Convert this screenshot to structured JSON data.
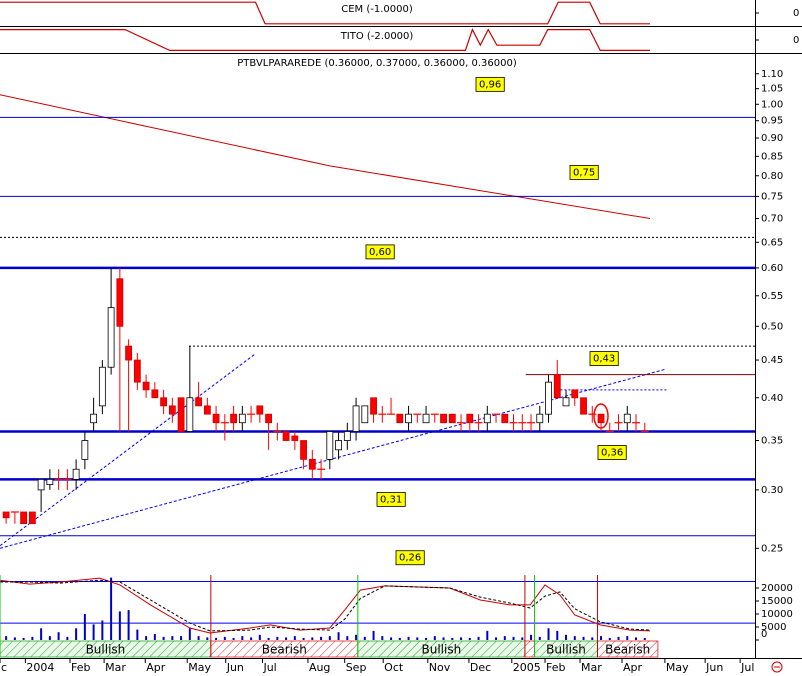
{
  "chart_data": [
    {
      "type": "step",
      "title": "CEM (-1.0000)",
      "xlim": [
        -0.7,
        85.6
      ],
      "ylim": [
        -1.2,
        1.2
      ],
      "yticks": [
        0
      ],
      "series": [
        {
          "color": "#cc0000",
          "x": [
            -0.7,
            28.5,
            29.6,
            61.9,
            63.1,
            66.7,
            67.9,
            73.6
          ],
          "values": [
            1,
            1,
            -1,
            -1,
            1,
            1,
            -1,
            -1
          ]
        }
      ]
    },
    {
      "type": "step",
      "title": "TITO (-2.0000)",
      "xlim": [
        -0.7,
        85.6
      ],
      "ylim": [
        -2.5,
        2.5
      ],
      "yticks": [
        0
      ],
      "series": [
        {
          "color": "#cc0000",
          "x": [
            -0.7,
            13.6,
            18.7,
            52.5,
            53.3,
            54.2,
            55.1,
            56.1,
            61.0,
            61.9,
            66.7,
            67.9,
            73.6
          ],
          "values": [
            2,
            2,
            -2,
            -2,
            2,
            -1,
            2,
            -1,
            -1,
            2,
            2,
            -2,
            -2
          ]
        }
      ]
    },
    {
      "type": "candlestick",
      "title": "PTBVLPARAREDE (0.36000, 0.37000, 0.36000, 0.36000)",
      "xlim": [
        -0.7,
        85.6
      ],
      "ylim": [
        0.23,
        1.17
      ],
      "log": true,
      "yticks": [
        0.25,
        {
          "value": 0.3,
          "label": "0.30"
        },
        0.35,
        {
          "value": 0.4,
          "label": "0.40"
        },
        0.45,
        {
          "value": 0.5,
          "label": "0.50"
        },
        0.55,
        {
          "value": 0.6,
          "label": "0.60"
        },
        0.65,
        {
          "value": 0.7,
          "label": "0.70"
        },
        0.75,
        {
          "value": 0.8,
          "label": "0.80"
        },
        0.85,
        {
          "value": 0.9,
          "label": "0.90"
        },
        0.95,
        {
          "value": 1.0,
          "label": "1.00"
        },
        1.05,
        {
          "value": 1.1,
          "label": "1.10"
        }
      ],
      "up_color": "#ffffff",
      "down_color": "#ff0000",
      "open": [
        0.28,
        0.28,
        0.28,
        0.28,
        0.3,
        0.305,
        0.31,
        0.31,
        0.31,
        0.33,
        0.37,
        0.39,
        0.44,
        0.58,
        0.47,
        0.45,
        0.42,
        0.41,
        0.4,
        0.39,
        0.4,
        0.36,
        0.4,
        0.39,
        0.38,
        0.37,
        0.38,
        0.37,
        0.38,
        0.39,
        0.38,
        0.36,
        0.36,
        0.355,
        0.35,
        0.33,
        0.32,
        0.33,
        0.34,
        0.35,
        0.36,
        0.37,
        0.4,
        0.38,
        0.38,
        0.38,
        0.37,
        0.38,
        0.37,
        0.38,
        0.38,
        0.38,
        0.37,
        0.38,
        0.37,
        0.37,
        0.38,
        0.38,
        0.37,
        0.37,
        0.37,
        0.37,
        0.38,
        0.43,
        0.39,
        0.41,
        0.4,
        0.38,
        0.38,
        0.36,
        0.37,
        0.37,
        0.37,
        0.36
      ],
      "high": [
        0.28,
        0.28,
        0.28,
        0.28,
        0.31,
        0.32,
        0.32,
        0.32,
        0.33,
        0.36,
        0.4,
        0.45,
        0.6,
        0.6,
        0.48,
        0.46,
        0.43,
        0.42,
        0.41,
        0.4,
        0.4,
        0.47,
        0.42,
        0.4,
        0.39,
        0.38,
        0.39,
        0.39,
        0.39,
        0.39,
        0.38,
        0.37,
        0.36,
        0.36,
        0.35,
        0.34,
        0.33,
        0.36,
        0.36,
        0.37,
        0.4,
        0.39,
        0.4,
        0.39,
        0.4,
        0.38,
        0.39,
        0.38,
        0.39,
        0.38,
        0.38,
        0.38,
        0.38,
        0.38,
        0.38,
        0.39,
        0.38,
        0.38,
        0.38,
        0.38,
        0.38,
        0.39,
        0.43,
        0.45,
        0.41,
        0.41,
        0.4,
        0.39,
        0.38,
        0.37,
        0.38,
        0.39,
        0.38,
        0.37
      ],
      "low": [
        0.27,
        0.27,
        0.27,
        0.27,
        0.28,
        0.3,
        0.3,
        0.3,
        0.3,
        0.32,
        0.36,
        0.38,
        0.43,
        0.36,
        0.36,
        0.41,
        0.4,
        0.4,
        0.38,
        0.37,
        0.36,
        0.36,
        0.39,
        0.38,
        0.36,
        0.35,
        0.36,
        0.36,
        0.37,
        0.37,
        0.34,
        0.35,
        0.35,
        0.34,
        0.32,
        0.31,
        0.31,
        0.32,
        0.33,
        0.34,
        0.35,
        0.37,
        0.37,
        0.37,
        0.38,
        0.37,
        0.36,
        0.37,
        0.37,
        0.37,
        0.37,
        0.37,
        0.36,
        0.36,
        0.36,
        0.36,
        0.37,
        0.37,
        0.36,
        0.36,
        0.36,
        0.36,
        0.37,
        0.4,
        0.39,
        0.39,
        0.38,
        0.37,
        0.36,
        0.36,
        0.36,
        0.36,
        0.36,
        0.36
      ],
      "close": [
        0.275,
        0.28,
        0.27,
        0.27,
        0.31,
        0.31,
        0.31,
        0.31,
        0.32,
        0.35,
        0.38,
        0.44,
        0.53,
        0.5,
        0.45,
        0.42,
        0.41,
        0.4,
        0.39,
        0.38,
        0.36,
        0.4,
        0.39,
        0.38,
        0.37,
        0.37,
        0.37,
        0.38,
        0.38,
        0.38,
        0.37,
        0.36,
        0.35,
        0.35,
        0.33,
        0.32,
        0.32,
        0.36,
        0.35,
        0.36,
        0.39,
        0.39,
        0.38,
        0.38,
        0.38,
        0.37,
        0.38,
        0.38,
        0.38,
        0.38,
        0.37,
        0.37,
        0.37,
        0.37,
        0.37,
        0.38,
        0.38,
        0.37,
        0.37,
        0.37,
        0.37,
        0.38,
        0.42,
        0.4,
        0.4,
        0.4,
        0.38,
        0.38,
        0.37,
        0.36,
        0.37,
        0.38,
        0.37,
        0.36
      ],
      "levels": {
        "values": [
          0.96,
          0.75,
          0.6,
          0.43,
          0.36,
          0.31,
          0.26
        ],
        "value_labels": [
          "0,96",
          "0,75",
          "0,60",
          "0,43",
          "0,36",
          "0,31",
          "0,26"
        ],
        "styles": [
          "thin",
          "thin",
          "thick",
          "thin",
          "thick",
          "thick",
          "thin"
        ],
        "colors": [
          "#0000cc",
          "#0000cc",
          "#0000cc",
          "#800000",
          "#0000cc",
          "#0000cc",
          "#0000cc"
        ],
        "x_from": [
          -0.7,
          -0.7,
          -0.7,
          59.4,
          -0.7,
          -0.7,
          -0.7
        ]
      },
      "dotted_lines": {
        "values": [
          0.66,
          0.47,
          0.41
        ],
        "x_from": [
          -0.7,
          20.9,
          62.9
        ],
        "x_to": [
          85.6,
          85.6,
          75.6
        ],
        "colors": [
          "#000000",
          "#000000",
          "#0000ff"
        ]
      },
      "trend_lines": [
        {
          "color": "#0000ff",
          "x": [
            -0.7,
            28.5
          ],
          "values": [
            0.252,
            0.459
          ]
        },
        {
          "color": "#0000ff",
          "x": [
            -0.7,
            75.3
          ],
          "values": [
            0.25,
            0.437
          ]
        }
      ],
      "average": {
        "color": "#cc0000",
        "x": [
          -0.7,
          37,
          73.6
        ],
        "values": [
          1.03,
          0.825,
          0.7
        ]
      }
    },
    {
      "type": "bar",
      "xlim": [
        -0.7,
        85.6
      ],
      "ylim": [
        0,
        25000
      ],
      "yticks": [
        0,
        5000,
        10000,
        15000,
        20000
      ],
      "color": "#0000cc",
      "values": [
        1500,
        1000,
        800,
        1200,
        4500,
        1500,
        3000,
        1200,
        4500,
        10000,
        6000,
        7500,
        24000,
        11000,
        11500,
        4000,
        1500,
        2300,
        1200,
        1500,
        1500,
        4500,
        1500,
        1000,
        800,
        1200,
        800,
        1500,
        1000,
        2000,
        800,
        1200,
        1000,
        1500,
        800,
        1000,
        1200,
        1500,
        3000,
        1500,
        2000,
        1200,
        3500,
        1500,
        1000,
        800,
        1200,
        1000,
        800,
        1500,
        1000,
        800,
        1000,
        800,
        1200,
        3500,
        1000,
        1500,
        1200,
        1000,
        2000,
        1200,
        4500,
        3500,
        2000,
        1500,
        1200,
        1000,
        1500,
        800,
        1200,
        1500,
        1000,
        800
      ],
      "averages": [
        {
          "color": "#cc0000",
          "dashed": false,
          "x": [
            -0.7,
            2.7,
            6.2,
            10.7,
            13.0,
            16.5,
            21.0,
            23.3,
            27.9,
            30.2,
            33.6,
            37.0,
            38.7,
            40.5,
            43.3,
            50.7,
            54.2,
            57.6,
            59.9,
            61.6,
            63.3,
            65.0,
            67.9,
            71.3,
            73.6
          ],
          "values": [
            23000,
            21500,
            22300,
            23800,
            21200,
            13500,
            4600,
            2700,
            4600,
            5800,
            3800,
            4600,
            11500,
            19200,
            20800,
            20000,
            15400,
            13500,
            13500,
            21200,
            17300,
            9600,
            5800,
            3800,
            3500
          ]
        },
        {
          "color": "#000000",
          "dashed": true,
          "x": [
            -0.7,
            2.7,
            6.2,
            10.7,
            13.0,
            16.5,
            21.0,
            23.3,
            27.9,
            30.2,
            33.6,
            37.0,
            38.7,
            40.5,
            43.3,
            50.7,
            54.2,
            57.6,
            59.9,
            61.6,
            63.3,
            65.0,
            67.9,
            71.3,
            73.6
          ],
          "values": [
            22300,
            22300,
            21900,
            23000,
            22300,
            15400,
            6500,
            3500,
            3800,
            5000,
            4200,
            3800,
            8000,
            16000,
            20800,
            20000,
            16500,
            14200,
            12300,
            16900,
            18500,
            12000,
            7000,
            4200,
            3800
          ]
        }
      ],
      "levels": {
        "values": [
          22500,
          6500
        ],
        "color": "#0000ff"
      },
      "signals": {
        "labels": [
          "Bullish",
          "Bearish",
          "Bullish",
          null,
          "Bullish",
          "Bearish"
        ],
        "kinds": [
          "bullish",
          "bearish",
          "bullish",
          "bearish",
          "bullish",
          "bearish"
        ],
        "start": [
          -0.7,
          23.4,
          40.2,
          59.3,
          60.4,
          67.6
        ],
        "end": [
          23.4,
          40.2,
          59.3,
          60.4,
          67.6,
          74.5
        ]
      },
      "xticks": [
        {
          "value": -0.7,
          "label": "c"
        },
        {
          "value": 2.2,
          "label": "2004"
        },
        {
          "value": 7.3,
          "label": "Feb"
        },
        {
          "value": 11.2,
          "label": "Mar"
        },
        {
          "value": 15.9,
          "label": "Apr"
        },
        {
          "value": 20.7,
          "label": "May"
        },
        {
          "value": 25.1,
          "label": "Jun"
        },
        {
          "value": 29.3,
          "label": "Jul"
        },
        {
          "value": 34.5,
          "label": "Aug"
        },
        {
          "value": 38.7,
          "label": "Sep"
        },
        {
          "value": 43.1,
          "label": "Oct"
        },
        {
          "value": 48.2,
          "label": "Nov"
        },
        {
          "value": 52.9,
          "label": "Dec"
        },
        {
          "value": 57.8,
          "label": "2005"
        },
        {
          "value": 61.6,
          "label": "Feb"
        },
        {
          "value": 65.6,
          "label": "Mar"
        },
        {
          "value": 70.4,
          "label": "Apr"
        },
        {
          "value": 75.3,
          "label": "May"
        },
        {
          "value": 79.9,
          "label": "Jun"
        },
        {
          "value": 83.9,
          "label": "Jul"
        }
      ]
    }
  ]
}
